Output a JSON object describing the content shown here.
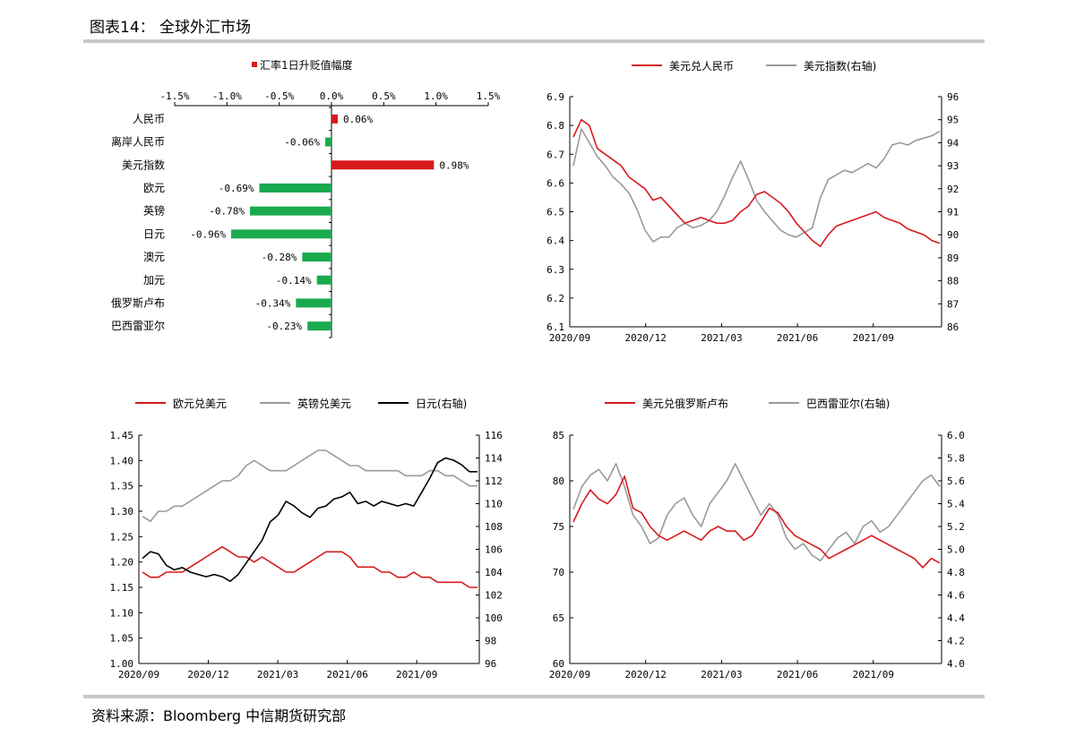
{
  "header": {
    "title": "图表14：  全球外汇市场"
  },
  "footer": {
    "source": "资料来源：Bloomberg 中信期货研究部"
  },
  "colors": {
    "red": "#d7191c",
    "green": "#1aaa4e",
    "gray": "#9a9a9a",
    "black": "#000000"
  },
  "chart_data": [
    {
      "type": "bar",
      "orientation": "horizontal",
      "legend": "汇率1日升贬值幅度",
      "categories": [
        "人民币",
        "离岸人民币",
        "美元指数",
        "欧元",
        "英镑",
        "日元",
        "澳元",
        "加元",
        "俄罗斯卢布",
        "巴西雷亚尔"
      ],
      "values": [
        0.06,
        -0.06,
        0.98,
        -0.69,
        -0.78,
        -0.96,
        -0.28,
        -0.14,
        -0.34,
        -0.23
      ],
      "value_labels": [
        "0.06%",
        "-0.06%",
        "0.98%",
        "-0.69%",
        "-0.78%",
        "-0.96%",
        "-0.28%",
        "-0.14%",
        "-0.34%",
        "-0.23%"
      ],
      "xlim": [
        -1.5,
        1.5
      ],
      "x_ticks": [
        -1.5,
        -1.0,
        -0.5,
        0.0,
        0.5,
        1.0,
        1.5
      ],
      "x_tick_labels": [
        "-1.5%",
        "-1.0%",
        "-0.5%",
        "0.0%",
        "0.5%",
        "1.0%",
        "1.5%"
      ]
    },
    {
      "type": "line",
      "x_tick_labels": [
        "2020/09",
        "2020/12",
        "2021/03",
        "2021/06",
        "2021/09"
      ],
      "left_axis": {
        "ylim": [
          6.1,
          6.9
        ],
        "ticks": [
          "6.1",
          "6.2",
          "6.3",
          "6.4",
          "6.5",
          "6.6",
          "6.7",
          "6.8",
          "6.9"
        ]
      },
      "right_axis": {
        "ylim": [
          86,
          96
        ],
        "ticks": [
          "86",
          "87",
          "88",
          "89",
          "90",
          "91",
          "92",
          "93",
          "94",
          "95",
          "96"
        ]
      },
      "series": [
        {
          "name": "美元兑人民币",
          "axis": "left",
          "color": "#d7191c",
          "values": [
            6.76,
            6.82,
            6.8,
            6.72,
            6.7,
            6.68,
            6.66,
            6.62,
            6.6,
            6.58,
            6.54,
            6.55,
            6.52,
            6.49,
            6.46,
            6.47,
            6.48,
            6.47,
            6.46,
            6.46,
            6.47,
            6.5,
            6.52,
            6.56,
            6.57,
            6.55,
            6.53,
            6.5,
            6.46,
            6.43,
            6.4,
            6.38,
            6.42,
            6.45,
            6.46,
            6.47,
            6.48,
            6.49,
            6.5,
            6.48,
            6.47,
            6.46,
            6.44,
            6.43,
            6.42,
            6.4,
            6.39
          ]
        },
        {
          "name": "美元指数(右轴)",
          "axis": "right",
          "color": "#9a9a9a",
          "values": [
            93.0,
            94.6,
            94.0,
            93.4,
            93.0,
            92.5,
            92.2,
            91.8,
            91.1,
            90.2,
            89.7,
            89.9,
            89.9,
            90.3,
            90.5,
            90.3,
            90.4,
            90.6,
            91.0,
            91.7,
            92.5,
            93.2,
            92.4,
            91.5,
            91.0,
            90.6,
            90.2,
            90.0,
            89.9,
            90.1,
            90.3,
            91.6,
            92.4,
            92.6,
            92.8,
            92.7,
            92.9,
            93.1,
            92.9,
            93.3,
            93.9,
            94.0,
            93.9,
            94.1,
            94.2,
            94.3,
            94.5
          ]
        }
      ]
    },
    {
      "type": "line",
      "x_tick_labels": [
        "2020/09",
        "2020/12",
        "2021/03",
        "2021/06",
        "2021/09"
      ],
      "left_axis": {
        "ylim": [
          1.0,
          1.45
        ],
        "ticks": [
          "1.00",
          "1.05",
          "1.10",
          "1.15",
          "1.20",
          "1.25",
          "1.30",
          "1.35",
          "1.40",
          "1.45"
        ]
      },
      "right_axis": {
        "ylim": [
          96,
          116
        ],
        "ticks": [
          "96",
          "98",
          "100",
          "102",
          "104",
          "106",
          "108",
          "110",
          "112",
          "114",
          "116"
        ]
      },
      "series": [
        {
          "name": "欧元兑美元",
          "axis": "left",
          "color": "#d7191c",
          "values": [
            1.18,
            1.17,
            1.17,
            1.18,
            1.18,
            1.18,
            1.19,
            1.2,
            1.21,
            1.22,
            1.23,
            1.22,
            1.21,
            1.21,
            1.2,
            1.21,
            1.2,
            1.19,
            1.18,
            1.18,
            1.19,
            1.2,
            1.21,
            1.22,
            1.22,
            1.22,
            1.21,
            1.19,
            1.19,
            1.19,
            1.18,
            1.18,
            1.17,
            1.17,
            1.18,
            1.17,
            1.17,
            1.16,
            1.16,
            1.16,
            1.16,
            1.15,
            1.15
          ]
        },
        {
          "name": "英镑兑美元",
          "axis": "left",
          "color": "#9a9a9a",
          "values": [
            1.29,
            1.28,
            1.3,
            1.3,
            1.31,
            1.31,
            1.32,
            1.33,
            1.34,
            1.35,
            1.36,
            1.36,
            1.37,
            1.39,
            1.4,
            1.39,
            1.38,
            1.38,
            1.38,
            1.39,
            1.4,
            1.41,
            1.42,
            1.42,
            1.41,
            1.4,
            1.39,
            1.39,
            1.38,
            1.38,
            1.38,
            1.38,
            1.38,
            1.37,
            1.37,
            1.37,
            1.38,
            1.38,
            1.37,
            1.37,
            1.36,
            1.35,
            1.35
          ]
        },
        {
          "name": "日元(右轴)",
          "axis": "right",
          "color": "#000000",
          "values": [
            105.2,
            105.8,
            105.6,
            104.6,
            104.2,
            104.4,
            104.0,
            103.8,
            103.6,
            103.8,
            103.6,
            103.2,
            103.8,
            104.8,
            105.8,
            106.8,
            108.4,
            109.0,
            110.2,
            109.8,
            109.2,
            108.8,
            109.6,
            109.8,
            110.4,
            110.6,
            111.0,
            110.0,
            110.2,
            109.8,
            110.2,
            110.0,
            109.8,
            110.0,
            109.8,
            111.0,
            112.2,
            113.6,
            114.0,
            113.8,
            113.4,
            112.8,
            112.8
          ]
        }
      ]
    },
    {
      "type": "line",
      "x_tick_labels": [
        "2020/09",
        "2020/12",
        "2021/03",
        "2021/06",
        "2021/09"
      ],
      "left_axis": {
        "ylim": [
          60,
          85
        ],
        "ticks": [
          "60",
          "65",
          "70",
          "75",
          "80",
          "85"
        ]
      },
      "right_axis": {
        "ylim": [
          4.0,
          6.0
        ],
        "ticks": [
          "4.0",
          "4.2",
          "4.4",
          "4.6",
          "4.8",
          "5.0",
          "5.2",
          "5.4",
          "5.6",
          "5.8",
          "6.0"
        ]
      },
      "series": [
        {
          "name": "美元兑俄罗斯卢布",
          "axis": "left",
          "color": "#d7191c",
          "values": [
            75.5,
            77.5,
            79.0,
            78.0,
            77.5,
            78.5,
            80.5,
            77.0,
            76.5,
            75.0,
            74.0,
            73.5,
            74.0,
            74.5,
            74.0,
            73.5,
            74.5,
            75.0,
            74.5,
            74.5,
            73.5,
            74.0,
            75.5,
            77.0,
            76.5,
            75.0,
            74.0,
            73.5,
            73.0,
            72.5,
            71.5,
            72.0,
            72.5,
            73.0,
            73.5,
            74.0,
            73.5,
            73.0,
            72.5,
            72.0,
            71.5,
            70.5,
            71.5,
            71.0
          ]
        },
        {
          "name": "巴西雷亚尔(右轴)",
          "axis": "right",
          "color": "#9a9a9a",
          "values": [
            5.35,
            5.55,
            5.65,
            5.7,
            5.6,
            5.75,
            5.55,
            5.3,
            5.2,
            5.05,
            5.1,
            5.3,
            5.4,
            5.45,
            5.3,
            5.2,
            5.4,
            5.5,
            5.6,
            5.75,
            5.6,
            5.45,
            5.3,
            5.4,
            5.3,
            5.1,
            5.0,
            5.05,
            4.95,
            4.9,
            5.0,
            5.1,
            5.15,
            5.05,
            5.2,
            5.25,
            5.15,
            5.2,
            5.3,
            5.4,
            5.5,
            5.6,
            5.65,
            5.55
          ]
        }
      ]
    }
  ]
}
